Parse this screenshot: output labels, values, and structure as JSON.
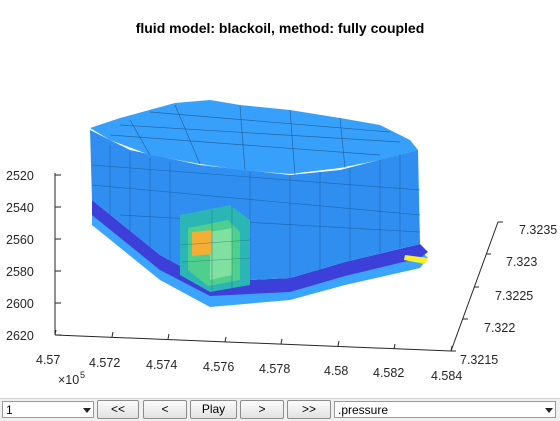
{
  "figure": {
    "title": "fluid model: blackoil, method: fully coupled"
  },
  "axes": {
    "x_ticks": [
      "4.57",
      "4.572",
      "4.574",
      "4.576",
      "4.578",
      "4.58",
      "4.582",
      "4.584"
    ],
    "x_exponent_base": "×10",
    "x_exponent_power": "5",
    "y_ticks": [
      "7.3215",
      "7.322",
      "7.3225",
      "7.323",
      "7.3235"
    ],
    "z_ticks": [
      "2520",
      "2540",
      "2560",
      "2580",
      "2600",
      "2620"
    ]
  },
  "colors": {
    "deep_blue": "#3c3fd8",
    "mid_blue": "#2f8ef0",
    "light_blue": "#3aa4ff",
    "teal": "#2bb5b5",
    "green": "#4fcf8e",
    "orange": "#f2ae35",
    "yellow": "#f5f02a"
  },
  "controls": {
    "step_select_value": "1",
    "first_button": "<<",
    "prev_button": "<",
    "play_button": "Play",
    "next_button": ">",
    "last_button": ">>",
    "field_select_value": ".pressure"
  }
}
